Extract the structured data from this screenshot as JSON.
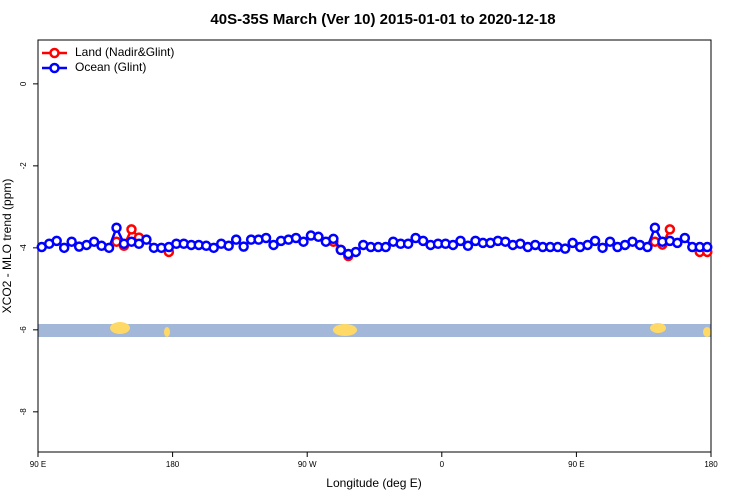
{
  "chart_data": {
    "type": "line",
    "title": "40S-35S March (Ver 10)   2015-01-01 to 2020-12-18",
    "x_label": "Longitude (deg E)",
    "y_label": "XCO2 - MLO trend (ppm)",
    "xlim": [
      90,
      540
    ],
    "ylim": [
      -8.98,
      1.07
    ],
    "xticks": [
      {
        "value": 90,
        "label": "90 E"
      },
      180,
      {
        "value": 270,
        "label": "90 W"
      },
      {
        "value": 360,
        "label": "0"
      },
      {
        "value": 450,
        "label": "90 E"
      },
      {
        "value": 540,
        "label": "180"
      }
    ],
    "yticks": [
      0,
      -2,
      -4,
      -6,
      -8
    ],
    "legend": "top-left",
    "x": [
      92.5,
      97.5,
      102.5,
      107.5,
      112.5,
      117.5,
      122.5,
      127.5,
      132.5,
      137.5,
      142.5,
      147.5,
      152.5,
      157.5,
      162.5,
      167.5,
      172.5,
      177.5,
      182.5,
      187.5,
      192.5,
      197.5,
      202.5,
      207.5,
      212.5,
      217.5,
      222.5,
      227.5,
      232.5,
      237.5,
      242.5,
      247.5,
      252.5,
      257.5,
      262.5,
      267.5,
      272.5,
      277.5,
      282.5,
      287.5,
      292.5,
      297.5,
      302.5,
      307.5,
      312.5,
      317.5,
      322.5,
      327.5,
      332.5,
      337.5,
      342.5,
      347.5,
      352.5,
      357.5,
      362.5,
      367.5,
      372.5,
      377.5,
      382.5,
      387.5,
      392.5,
      397.5,
      402.5,
      407.5,
      412.5,
      417.5,
      422.5,
      427.5,
      432.5,
      437.5,
      442.5,
      447.5,
      452.5,
      457.5,
      462.5,
      467.5,
      472.5,
      477.5,
      482.5,
      487.5,
      492.5,
      497.5,
      502.5,
      507.5,
      512.5,
      517.5,
      522.5,
      527.5,
      532.5,
      537.5
    ],
    "series": [
      {
        "name": "Land (Nadir&Glint)",
        "color": "#ff0000",
        "values": [
          null,
          null,
          null,
          null,
          null,
          null,
          null,
          null,
          null,
          null,
          -3.85,
          -3.95,
          -3.55,
          -3.75,
          null,
          null,
          null,
          -4.1,
          null,
          null,
          null,
          null,
          null,
          null,
          null,
          null,
          null,
          null,
          null,
          null,
          null,
          null,
          null,
          null,
          null,
          null,
          null,
          null,
          null,
          -3.85,
          -4.05,
          -4.2,
          null,
          null,
          null,
          null,
          null,
          null,
          null,
          null,
          null,
          null,
          null,
          null,
          null,
          null,
          null,
          null,
          null,
          null,
          null,
          null,
          null,
          null,
          null,
          null,
          null,
          null,
          null,
          null,
          null,
          null,
          null,
          null,
          null,
          null,
          null,
          null,
          null,
          null,
          null,
          null,
          -3.85,
          -3.92,
          -3.55,
          null,
          null,
          null,
          -4.1,
          -4.1
        ]
      },
      {
        "name": "Ocean (Glint)",
        "color": "#0000ff",
        "values": [
          -3.98,
          -3.9,
          -3.83,
          -4.0,
          -3.85,
          -3.97,
          -3.93,
          -3.85,
          -3.95,
          -4.0,
          -3.51,
          -3.9,
          -3.85,
          -3.9,
          -3.8,
          -4.0,
          -4.0,
          -3.98,
          -3.9,
          -3.9,
          -3.93,
          -3.93,
          -3.95,
          -4.0,
          -3.9,
          -3.95,
          -3.8,
          -3.97,
          -3.8,
          -3.8,
          -3.76,
          -3.93,
          -3.83,
          -3.8,
          -3.76,
          -3.85,
          -3.7,
          -3.73,
          -3.85,
          -3.78,
          -4.05,
          -4.15,
          -4.1,
          -3.93,
          -3.98,
          -3.98,
          -3.98,
          -3.85,
          -3.9,
          -3.9,
          -3.76,
          -3.83,
          -3.93,
          -3.9,
          -3.9,
          -3.93,
          -3.83,
          -3.95,
          -3.83,
          -3.88,
          -3.88,
          -3.83,
          -3.85,
          -3.93,
          -3.9,
          -3.98,
          -3.93,
          -3.98,
          -3.98,
          -3.98,
          -4.02,
          -3.88,
          -3.98,
          -3.93,
          -3.83,
          -4.0,
          -3.85,
          -3.98,
          -3.93,
          -3.85,
          -3.93,
          -3.98,
          -3.51,
          -3.85,
          -3.83,
          -3.88,
          -3.76,
          -3.98,
          -3.98,
          -3.98
        ]
      }
    ]
  }
}
